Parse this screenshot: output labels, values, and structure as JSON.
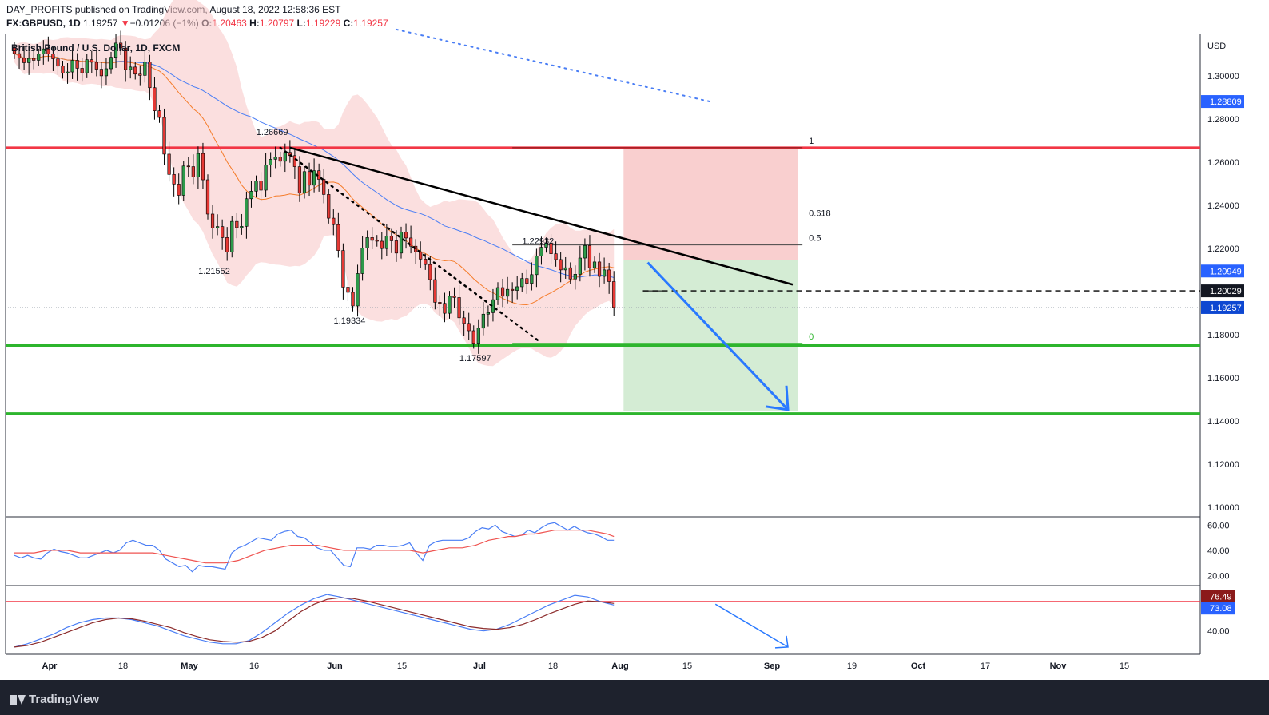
{
  "header": {
    "publisher": "DAY_PROFITS published on TradingView.com, August 18, 2022 12:58:36 EST",
    "symbol": "FX:GBPUSD, 1D",
    "price": "1.19257",
    "arrow": "▼",
    "change": "−0.01206 (−1%)",
    "o_label": "O:",
    "o_value": "1.20463",
    "h_label": "H:",
    "h_value": "1.20797",
    "l_label": "L:",
    "l_value": "1.19229",
    "c_label": "C:",
    "c_value": "1.19257"
  },
  "legend_title": "British Pound / U.S. Dollar, 1D, FXCM",
  "footer": {
    "brand": "TradingView"
  },
  "colors": {
    "up": "#26a69a",
    "down": "#ef5350",
    "support": "#2db52d",
    "resistance": "#f23645",
    "ma_fast": "#f57c2a",
    "ma_slow": "#4a7ef5",
    "arrow": "#2979ff"
  },
  "chart_data": [
    {
      "type": "candlestick",
      "currency": "USD",
      "x_ticks": [
        "Apr",
        "18",
        "May",
        "16",
        "Jun",
        "15",
        "Jul",
        "18",
        "Aug",
        "15",
        "Sep",
        "19",
        "Oct",
        "17",
        "Nov",
        "15"
      ],
      "y_ticks": [
        "1.30000",
        "1.28000",
        "1.26000",
        "1.24000",
        "1.22000",
        "1.20000",
        "1.18000",
        "1.16000",
        "1.14000",
        "1.12000",
        "1.10000"
      ],
      "ylim": [
        1.0955,
        1.3196
      ],
      "price_labels": [
        {
          "text": "1.28809",
          "value": 1.28809,
          "color": "#2962ff"
        },
        {
          "text": "1.20949",
          "value": 1.20949,
          "color": "#2962ff"
        },
        {
          "text": "1.20029",
          "value": 1.20029,
          "color": "#131722"
        },
        {
          "text": "1.19257",
          "value": 1.19257,
          "color": "#0d47d1"
        }
      ],
      "annotations": [
        {
          "text": "1.26669",
          "day": 55,
          "value": 1.26669
        },
        {
          "text": "1.21552",
          "day": 43,
          "value": 1.21552
        },
        {
          "text": "1.19334",
          "day": 71,
          "value": 1.19334
        },
        {
          "text": "1.17597",
          "day": 97,
          "value": 1.17597
        },
        {
          "text": "1.22932",
          "day": 110,
          "value": 1.22932
        }
      ],
      "fib_levels": [
        {
          "label": "1",
          "value": 1.26669
        },
        {
          "label": "0.618",
          "value": 1.2331
        },
        {
          "label": "0.5",
          "value": 1.2216
        },
        {
          "label": "0",
          "value": 1.17597
        }
      ],
      "horizontal_levels": [
        {
          "kind": "resistance",
          "value": 1.2667
        },
        {
          "kind": "support",
          "value": 1.17497
        },
        {
          "kind": "support",
          "value": 1.1434
        },
        {
          "kind": "dashed",
          "value": 1.20029
        }
      ],
      "trendline": {
        "from": {
          "day": 57,
          "value": 1.2667
        },
        "to": {
          "day": 161,
          "value": 1.2032
        }
      },
      "position": {
        "entry": 1.2145,
        "stop": 1.2667,
        "target": 1.1447,
        "from_day": 126,
        "to_day": 162
      },
      "projection_arrow": {
        "from": {
          "day": 131,
          "value": 1.2134
        },
        "to": {
          "day": 160,
          "value": 1.1452
        }
      },
      "closes": [
        1.3103,
        1.3082,
        1.3061,
        1.3081,
        1.3072,
        1.3101,
        1.3125,
        1.3101,
        1.3079,
        1.3045,
        1.3012,
        1.3018,
        1.3072,
        1.3035,
        1.3014,
        1.3075,
        1.3063,
        1.3031,
        1.3,
        1.3033,
        1.3086,
        1.3152,
        1.3129,
        1.3029,
        1.3041,
        1.3008,
        1.3002,
        1.3064,
        1.2945,
        1.2838,
        1.2807,
        1.2637,
        1.2543,
        1.2498,
        1.2446,
        1.2582,
        1.2579,
        1.2531,
        1.264,
        1.2518,
        1.2359,
        1.2294,
        1.2301,
        1.225,
        1.2183,
        1.2325,
        1.2296,
        1.2302,
        1.243,
        1.2465,
        1.2513,
        1.247,
        1.2586,
        1.2613,
        1.2623,
        1.2604,
        1.2645,
        1.263,
        1.2579,
        1.2456,
        1.2556,
        1.2493,
        1.256,
        1.252,
        1.245,
        1.234,
        1.231,
        1.219,
        1.202,
        1.1996,
        1.1933,
        1.2083,
        1.2201,
        1.225,
        1.2237,
        1.2233,
        1.2199,
        1.2257,
        1.2235,
        1.2178,
        1.2275,
        1.2248,
        1.221,
        1.2183,
        1.215,
        1.2125,
        1.2055,
        1.195,
        1.1945,
        1.1899,
        1.1978,
        1.1972,
        1.1878,
        1.1852,
        1.1818,
        1.176,
        1.183,
        1.1895,
        1.1902,
        1.1962,
        1.2018,
        1.1978,
        1.201,
        1.2005,
        1.2022,
        1.206,
        1.2038,
        1.2078,
        1.2165,
        1.2205,
        1.2225,
        1.2175,
        1.2148,
        1.21,
        1.211,
        1.2058,
        1.208,
        1.2155,
        1.2213,
        1.211,
        1.2137,
        1.207,
        1.21,
        1.2046,
        1.1926
      ]
    },
    {
      "type": "line",
      "panel": "oscillator",
      "y_ticks": [
        "60.00",
        "40.00",
        "20.00"
      ],
      "ylim": [
        12,
        66
      ],
      "series": [
        {
          "values": [
            36,
            34,
            36,
            34,
            33,
            38,
            41,
            39,
            38,
            36,
            34,
            34,
            36,
            38,
            40,
            38,
            40,
            46,
            48,
            46,
            44,
            44,
            40,
            33,
            30,
            27,
            28,
            23,
            28,
            27,
            27,
            26,
            25,
            38,
            42,
            44,
            47,
            50,
            49,
            48,
            53,
            55,
            56,
            51,
            50,
            46,
            42,
            40,
            40,
            34,
            28,
            27,
            42,
            42,
            41,
            44,
            44,
            43,
            43,
            44,
            46,
            38,
            32,
            44,
            47,
            48,
            48,
            48,
            48,
            50,
            55,
            58,
            57,
            60,
            55,
            53,
            51,
            52,
            56,
            54,
            58,
            61,
            62,
            59,
            56,
            59,
            56,
            54,
            53,
            51,
            48,
            48
          ]
        },
        {
          "values": [
            38,
            38,
            38,
            38,
            39,
            40,
            40,
            40,
            40,
            39,
            38,
            38,
            38,
            38,
            38,
            38,
            38,
            38,
            38,
            38,
            38,
            38,
            37,
            36,
            35,
            34,
            33,
            32,
            31,
            30,
            30,
            30,
            30,
            31,
            32,
            34,
            36,
            38,
            40,
            41,
            42,
            43,
            44,
            44,
            44,
            44,
            44,
            43,
            42,
            41,
            40,
            40,
            40,
            40,
            40,
            40,
            40,
            40,
            40,
            40,
            40,
            39,
            38,
            39,
            40,
            41,
            42,
            42,
            42,
            43,
            44,
            46,
            48,
            49,
            50,
            51,
            51,
            52,
            53,
            53,
            54,
            55,
            56,
            56,
            56,
            56,
            56,
            56,
            55,
            54,
            53,
            51
          ]
        }
      ]
    },
    {
      "type": "line",
      "panel": "stochastic",
      "y_ticks": [
        "40.00"
      ],
      "ylim": [
        11,
        95
      ],
      "value_labels": [
        {
          "text": "76.49",
          "value": 76.49
        },
        {
          "text": "73.08",
          "value": 73.08
        }
      ],
      "series": [
        {
          "values": [
            20,
            24,
            30,
            36,
            44,
            50,
            54,
            56,
            56,
            54,
            50,
            46,
            40,
            34,
            30,
            26,
            24,
            24,
            28,
            38,
            50,
            62,
            72,
            80,
            85,
            82,
            78,
            74,
            70,
            66,
            62,
            58,
            54,
            50,
            46,
            42,
            40,
            42,
            48,
            56,
            64,
            72,
            78,
            84,
            82,
            76,
            72
          ]
        },
        {
          "values": [
            20,
            22,
            26,
            32,
            38,
            44,
            50,
            54,
            56,
            55,
            52,
            48,
            44,
            38,
            33,
            29,
            27,
            26,
            27,
            32,
            40,
            52,
            64,
            73,
            79,
            81,
            80,
            77,
            73,
            69,
            65,
            61,
            57,
            53,
            49,
            45,
            43,
            42,
            44,
            48,
            54,
            61,
            67,
            73,
            77,
            76,
            74
          ]
        }
      ]
    }
  ]
}
